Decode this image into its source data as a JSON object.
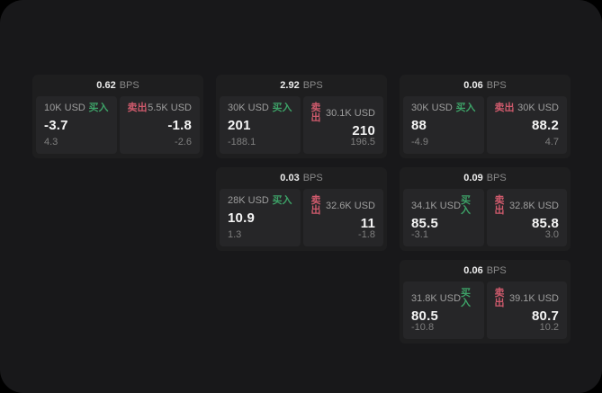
{
  "labels": {
    "buy": "买入",
    "sell": "卖出",
    "bps": "BPS"
  },
  "colors": {
    "buy_green": "#3da167",
    "sell_red": "#cf5a6c",
    "frame_bg": "#18181a",
    "card_bg": "#1e1e1f",
    "panel_bg": "#262628"
  },
  "cards": [
    {
      "row": 1,
      "col": 1,
      "bps": "0.62",
      "buy": {
        "size": "10K USD",
        "price": "-3.7",
        "delta": "4.3"
      },
      "sell": {
        "size": "5.5K USD",
        "price": "-1.8",
        "delta": "-2.6"
      }
    },
    {
      "row": 1,
      "col": 2,
      "bps": "2.92",
      "buy": {
        "size": "30K USD",
        "price": "201",
        "delta": "-188.1"
      },
      "sell": {
        "size": "30.1K USD",
        "price": "210",
        "delta": "196.5"
      }
    },
    {
      "row": 1,
      "col": 3,
      "bps": "0.06",
      "buy": {
        "size": "30K USD",
        "price": "88",
        "delta": "-4.9"
      },
      "sell": {
        "size": "30K USD",
        "price": "88.2",
        "delta": "4.7"
      }
    },
    {
      "row": 2,
      "col": 2,
      "bps": "0.03",
      "buy": {
        "size": "28K USD",
        "price": "10.9",
        "delta": "1.3"
      },
      "sell": {
        "size": "32.6K USD",
        "price": "11",
        "delta": "-1.8"
      }
    },
    {
      "row": 2,
      "col": 3,
      "bps": "0.09",
      "buy": {
        "size": "34.1K USD",
        "price": "85.5",
        "delta": "-3.1"
      },
      "sell": {
        "size": "32.8K USD",
        "price": "85.8",
        "delta": "3.0"
      }
    },
    {
      "row": 3,
      "col": 3,
      "bps": "0.06",
      "buy": {
        "size": "31.8K USD",
        "price": "80.5",
        "delta": "-10.8"
      },
      "sell": {
        "size": "39.1K USD",
        "price": "80.7",
        "delta": "10.2"
      }
    }
  ]
}
